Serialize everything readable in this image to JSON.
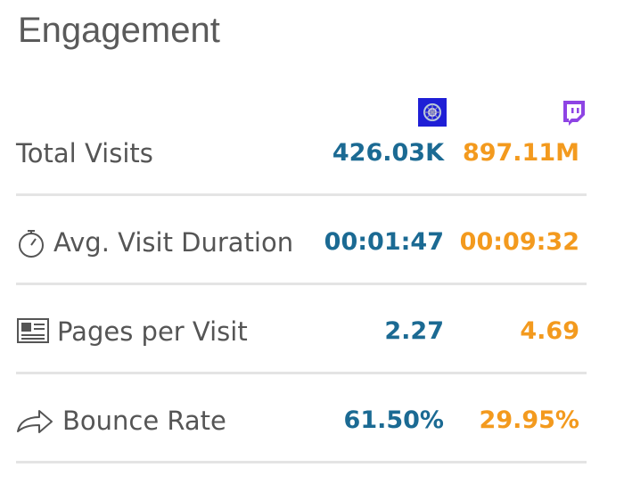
{
  "title": "Engagement",
  "table": {
    "rows": [
      {
        "label": "Total Visits",
        "values": [
          "426.03K",
          "897.11M"
        ]
      },
      {
        "label": "Avg. Visit Duration",
        "values": [
          "00:01:47",
          "00:09:32"
        ]
      },
      {
        "label": "Pages per Visit",
        "values": [
          "2.27",
          "4.69"
        ]
      },
      {
        "label": "Bounce Rate",
        "values": [
          "61.50%",
          "29.95%"
        ]
      }
    ]
  }
}
